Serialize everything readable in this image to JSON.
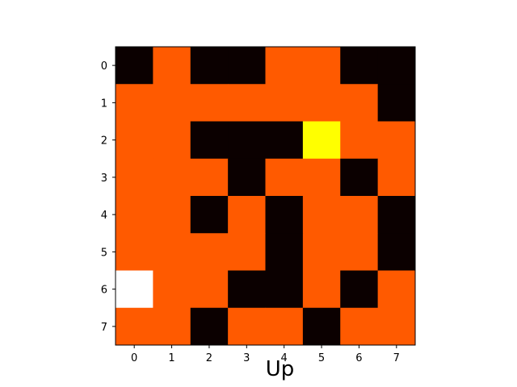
{
  "chart_data": {
    "type": "heatmap",
    "title": "",
    "xlabel": "Up",
    "ylabel": "",
    "x_tick_labels": [
      "0",
      "1",
      "2",
      "3",
      "4",
      "5",
      "6",
      "7"
    ],
    "y_tick_labels": [
      "0",
      "1",
      "2",
      "3",
      "4",
      "5",
      "6",
      "7"
    ],
    "grid": false,
    "colorbar": false,
    "legend": "none",
    "rows": [
      [
        "wall",
        "open",
        "wall",
        "wall",
        "open",
        "open",
        "wall",
        "wall"
      ],
      [
        "open",
        "open",
        "open",
        "open",
        "open",
        "open",
        "open",
        "wall"
      ],
      [
        "open",
        "open",
        "wall",
        "wall",
        "wall",
        "goal",
        "open",
        "open"
      ],
      [
        "open",
        "open",
        "open",
        "wall",
        "open",
        "open",
        "wall",
        "open"
      ],
      [
        "open",
        "open",
        "wall",
        "open",
        "wall",
        "open",
        "open",
        "wall"
      ],
      [
        "open",
        "open",
        "open",
        "open",
        "wall",
        "open",
        "open",
        "wall"
      ],
      [
        "agent",
        "open",
        "open",
        "wall",
        "wall",
        "open",
        "wall",
        "open"
      ],
      [
        "open",
        "open",
        "wall",
        "open",
        "open",
        "wall",
        "open",
        "open"
      ]
    ],
    "colors": {
      "wall": "#0b0000",
      "open": "#ff5a00",
      "goal": "#ffff00",
      "agent": "#ffffff"
    }
  }
}
